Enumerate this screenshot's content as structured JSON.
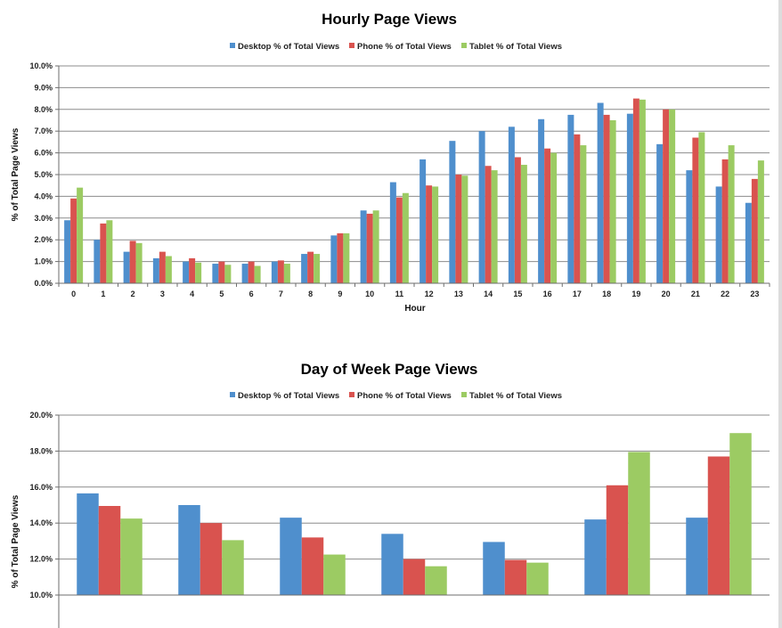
{
  "chart_data": [
    {
      "type": "bar",
      "title": "Hourly Page Views",
      "xlabel": "Hour",
      "ylabel": "% of Total Page Views",
      "ylim": [
        0,
        10
      ],
      "y_ticks": [
        "0.0%",
        "1.0%",
        "2.0%",
        "3.0%",
        "4.0%",
        "5.0%",
        "6.0%",
        "7.0%",
        "8.0%",
        "9.0%",
        "10.0%"
      ],
      "categories": [
        "0",
        "1",
        "2",
        "3",
        "4",
        "5",
        "6",
        "7",
        "8",
        "9",
        "10",
        "11",
        "12",
        "13",
        "14",
        "15",
        "16",
        "17",
        "18",
        "19",
        "20",
        "21",
        "22",
        "23"
      ],
      "legend_position": "top",
      "grid": true,
      "series": [
        {
          "name": "Desktop % of Total Views",
          "color": "#4f8fcd",
          "values": [
            2.9,
            2.0,
            1.45,
            1.15,
            1.0,
            0.9,
            0.9,
            1.0,
            1.35,
            2.2,
            3.35,
            4.65,
            5.7,
            6.55,
            7.0,
            7.2,
            7.55,
            7.75,
            8.3,
            7.8,
            6.4,
            5.2,
            4.45,
            3.7
          ]
        },
        {
          "name": "Phone % of Total Views",
          "color": "#d9534f",
          "values": [
            3.9,
            2.75,
            1.95,
            1.45,
            1.15,
            1.0,
            1.0,
            1.05,
            1.45,
            2.3,
            3.2,
            3.95,
            4.5,
            5.0,
            5.4,
            5.8,
            6.2,
            6.85,
            7.75,
            8.5,
            8.0,
            6.7,
            5.7,
            4.8
          ]
        },
        {
          "name": "Tablet % of Total Views",
          "color": "#9ccb63",
          "values": [
            4.4,
            2.9,
            1.85,
            1.25,
            0.95,
            0.85,
            0.8,
            0.9,
            1.35,
            2.3,
            3.35,
            4.15,
            4.45,
            4.95,
            5.2,
            5.45,
            6.0,
            6.35,
            7.5,
            8.45,
            8.0,
            6.95,
            6.35,
            5.65
          ]
        }
      ]
    },
    {
      "type": "bar",
      "title": "Day of Week Page Views",
      "xlabel": "",
      "ylabel": "% of Total Page Views",
      "ylim": [
        10,
        20
      ],
      "y_ticks": [
        "10.0%",
        "12.0%",
        "14.0%",
        "16.0%",
        "18.0%",
        "20.0%"
      ],
      "categories": [
        "",
        "",
        "",
        "",
        "",
        "",
        ""
      ],
      "legend_position": "top",
      "grid": true,
      "series": [
        {
          "name": "Desktop % of Total Views",
          "color": "#4f8fcd",
          "values": [
            15.65,
            15.0,
            14.3,
            13.4,
            12.95,
            14.2,
            14.3
          ]
        },
        {
          "name": "Phone % of Total Views",
          "color": "#d9534f",
          "values": [
            14.95,
            14.0,
            13.2,
            12.0,
            11.95,
            16.1,
            17.7
          ]
        },
        {
          "name": "Tablet % of Total Views",
          "color": "#9ccb63",
          "values": [
            14.25,
            13.05,
            12.25,
            11.6,
            11.8,
            17.95,
            19.0
          ]
        }
      ]
    }
  ]
}
